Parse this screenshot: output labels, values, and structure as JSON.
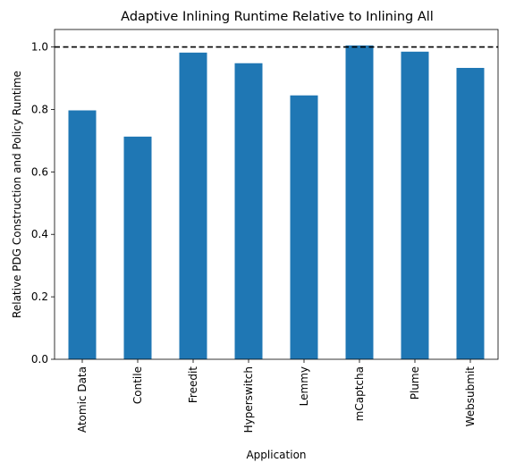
{
  "chart_data": {
    "type": "bar",
    "title": "Adaptive Inlining Runtime Relative to Inlining All",
    "xlabel": "Application",
    "ylabel": "Relative PDG Construction and Policy Runtime",
    "categories": [
      "Atomic Data",
      "Contile",
      "Freedit",
      "Hyperswitch",
      "Lemmy",
      "mCaptcha",
      "Plume",
      "Websubmit"
    ],
    "values": [
      0.797,
      0.713,
      0.982,
      0.948,
      0.845,
      1.005,
      0.985,
      0.933
    ],
    "ylim": [
      0,
      1.056
    ],
    "yticks": [
      0.0,
      0.2,
      0.4,
      0.6,
      0.8,
      1.0
    ],
    "reference_line": {
      "y": 1.0,
      "style": "dashed",
      "color": "#000000"
    },
    "bar_color": "#1f77b4",
    "grid": false,
    "legend": "none"
  }
}
